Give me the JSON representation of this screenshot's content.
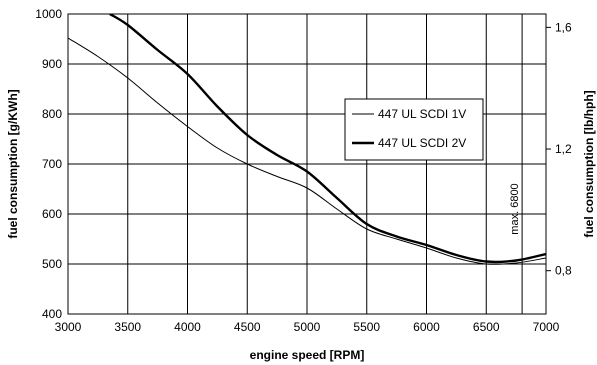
{
  "chart_data": {
    "type": "line",
    "title": "",
    "xlabel": "engine speed [RPM]",
    "ylabel": "fuel consumption [g/KWh]",
    "y2label": "fuel consumption [lb/hph]",
    "xlim": [
      3000,
      7000
    ],
    "ylim": [
      400,
      1000
    ],
    "xticks": [
      3000,
      3500,
      4000,
      4500,
      5000,
      5500,
      6000,
      6500,
      7000
    ],
    "yticks": [
      400,
      500,
      600,
      700,
      800,
      900,
      1000
    ],
    "y2ticks": [
      {
        "value": 0.8,
        "label": "0,8"
      },
      {
        "value": 1.2,
        "label": "1,2"
      },
      {
        "value": 1.6,
        "label": "1,6"
      }
    ],
    "grid": true,
    "legend_position": "center-right",
    "annotation": {
      "text": "max. 6800",
      "x": 6800
    },
    "series": [
      {
        "name": "447 UL SCDI 1V",
        "style": "thin",
        "color": "#000000",
        "x": [
          3000,
          3250,
          3500,
          3750,
          4000,
          4250,
          4500,
          4750,
          5000,
          5250,
          5500,
          5750,
          6000,
          6250,
          6500,
          6750,
          7000
        ],
        "y": [
          952,
          915,
          872,
          822,
          775,
          732,
          700,
          675,
          652,
          610,
          570,
          550,
          532,
          512,
          500,
          502,
          512
        ]
      },
      {
        "name": "447 UL SCDI 2V",
        "style": "thick",
        "color": "#000000",
        "x": [
          3350,
          3500,
          3750,
          4000,
          4250,
          4500,
          4750,
          5000,
          5250,
          5500,
          5750,
          6000,
          6250,
          6500,
          6750,
          7000
        ],
        "y": [
          1000,
          978,
          928,
          880,
          815,
          758,
          718,
          685,
          632,
          580,
          555,
          538,
          518,
          505,
          507,
          520
        ]
      }
    ]
  }
}
